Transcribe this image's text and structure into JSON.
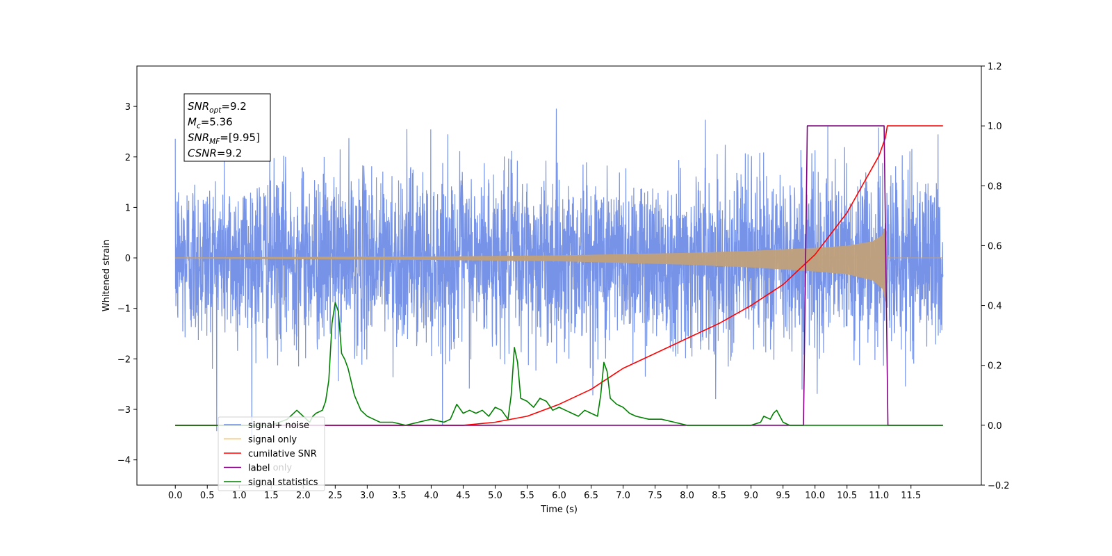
{
  "chart_data": {
    "type": "line",
    "xlabel": "Time (s)",
    "ylabel": "Whitened strain",
    "xlim": [
      -0.6,
      12.6
    ],
    "ylim": [
      -4.5,
      3.8
    ],
    "ylim_right": [
      -0.2,
      1.2
    ],
    "x_ticks": [
      0.0,
      0.5,
      1.0,
      1.5,
      2.0,
      2.5,
      3.0,
      3.5,
      4.0,
      4.5,
      5.0,
      5.5,
      6.0,
      6.5,
      7.0,
      7.5,
      8.0,
      8.5,
      9.0,
      9.5,
      10.0,
      10.5,
      11.0,
      11.5
    ],
    "x_tick_labels": [
      "0.0",
      "0.5",
      "1.0",
      "1.5",
      "2.0",
      "2.5",
      "3.0",
      "3.5",
      "4.0",
      "4.5",
      "5.0",
      "5.5",
      "6.0",
      "6.5",
      "7.0",
      "7.5",
      "8.0",
      "8.5",
      "9.0",
      "9.5",
      "10.0",
      "10.5",
      "11.0",
      "11.5"
    ],
    "y_ticks_left": [
      -4,
      -3,
      -2,
      -1,
      0,
      1,
      2,
      3
    ],
    "y_tick_labels_left": [
      "−4",
      "−3",
      "−2",
      "−1",
      "0",
      "1",
      "2",
      "3"
    ],
    "y_ticks_right": [
      -0.2,
      0.0,
      0.2,
      0.4,
      0.6,
      0.8,
      1.0,
      1.2
    ],
    "y_tick_labels_right": [
      "−0.2",
      "0.0",
      "0.2",
      "0.4",
      "0.6",
      "0.8",
      "1.0",
      "1.2"
    ],
    "grid": false,
    "legend": {
      "placement": "lower-left",
      "entries": [
        {
          "label": "signal+ noise",
          "color": "#6f8de6"
        },
        {
          "label": "signal only",
          "color": "#ffc04d"
        },
        {
          "label": "cumilative SNR",
          "color": "#ff0000"
        },
        {
          "label": "label",
          "color": "#800080"
        },
        {
          "label": "signal statistics",
          "color": "#008000"
        }
      ],
      "hidden_text": "label only"
    },
    "annotation": {
      "lines": [
        {
          "main": "SNR",
          "sub": "opt",
          "value": "=9.2"
        },
        {
          "main": "M",
          "sub": "c",
          "value": "=5.36"
        },
        {
          "main": "SNR",
          "sub": "MF",
          "value": "=[9.95]"
        },
        {
          "main": "CSNR",
          "sub": "",
          "value": "=9.2"
        }
      ]
    },
    "series": [
      {
        "name": "signal+ noise",
        "axis": "left",
        "color": "#6f8de6",
        "t_start": 0.0,
        "t_end": 12.0,
        "noise_sigma": 0.85,
        "noise_clip": [
          -3.6,
          3.5
        ]
      },
      {
        "name": "signal only",
        "axis": "left",
        "color": "#c0a07a",
        "merger_time": 11.13,
        "envelope": {
          "x": [
            0.0,
            2.0,
            4.0,
            6.0,
            8.0,
            9.0,
            10.0,
            10.5,
            10.9,
            11.05,
            11.12,
            11.13,
            12.0
          ],
          "y": [
            0.01,
            0.02,
            0.03,
            0.05,
            0.1,
            0.14,
            0.2,
            0.24,
            0.33,
            0.45,
            0.7,
            0.0,
            0.0
          ]
        }
      },
      {
        "name": "cumilative SNR",
        "axis": "right",
        "color": "#ff0000",
        "x": [
          0.0,
          4.5,
          5.0,
          5.5,
          6.0,
          6.5,
          7.0,
          7.5,
          8.0,
          8.5,
          9.0,
          9.5,
          10.0,
          10.5,
          11.0,
          11.1,
          11.13,
          12.0
        ],
        "y": [
          0.0,
          0.0,
          0.01,
          0.03,
          0.07,
          0.12,
          0.19,
          0.24,
          0.29,
          0.34,
          0.4,
          0.47,
          0.57,
          0.71,
          0.9,
          0.96,
          1.0,
          1.0
        ]
      },
      {
        "name": "label",
        "axis": "right",
        "color": "#800080",
        "x": [
          0.0,
          9.82,
          9.88,
          11.08,
          11.14,
          12.0
        ],
        "y": [
          0.0,
          0.0,
          1.0,
          1.0,
          0.0,
          0.0
        ]
      },
      {
        "name": "signal statistics",
        "axis": "right",
        "color": "#008000",
        "x": [
          0.0,
          1.5,
          1.75,
          1.9,
          2.0,
          2.1,
          2.15,
          2.2,
          2.3,
          2.35,
          2.4,
          2.45,
          2.5,
          2.55,
          2.6,
          2.65,
          2.7,
          2.8,
          2.9,
          3.0,
          3.1,
          3.2,
          3.4,
          3.6,
          3.8,
          4.0,
          4.2,
          4.3,
          4.4,
          4.5,
          4.6,
          4.7,
          4.8,
          4.9,
          5.0,
          5.1,
          5.2,
          5.25,
          5.3,
          5.35,
          5.4,
          5.5,
          5.6,
          5.7,
          5.8,
          5.9,
          6.0,
          6.1,
          6.2,
          6.3,
          6.4,
          6.5,
          6.6,
          6.65,
          6.7,
          6.75,
          6.8,
          6.9,
          7.0,
          7.1,
          7.2,
          7.4,
          7.6,
          7.8,
          8.0,
          8.5,
          9.0,
          9.15,
          9.2,
          9.3,
          9.35,
          9.4,
          9.5,
          9.6,
          9.8,
          10.0,
          12.0
        ],
        "y": [
          0.0,
          0.0,
          0.02,
          0.05,
          0.03,
          0.01,
          0.03,
          0.04,
          0.05,
          0.08,
          0.15,
          0.34,
          0.41,
          0.38,
          0.24,
          0.22,
          0.19,
          0.1,
          0.05,
          0.03,
          0.02,
          0.01,
          0.01,
          0.0,
          0.01,
          0.02,
          0.01,
          0.02,
          0.07,
          0.04,
          0.05,
          0.04,
          0.05,
          0.03,
          0.06,
          0.05,
          0.02,
          0.1,
          0.26,
          0.21,
          0.09,
          0.08,
          0.06,
          0.09,
          0.08,
          0.05,
          0.06,
          0.05,
          0.04,
          0.03,
          0.05,
          0.04,
          0.03,
          0.1,
          0.21,
          0.18,
          0.09,
          0.07,
          0.06,
          0.04,
          0.03,
          0.02,
          0.02,
          0.01,
          0.0,
          0.0,
          0.0,
          0.01,
          0.03,
          0.02,
          0.04,
          0.05,
          0.01,
          0.0,
          0.0,
          0.0,
          0.0
        ]
      }
    ]
  }
}
